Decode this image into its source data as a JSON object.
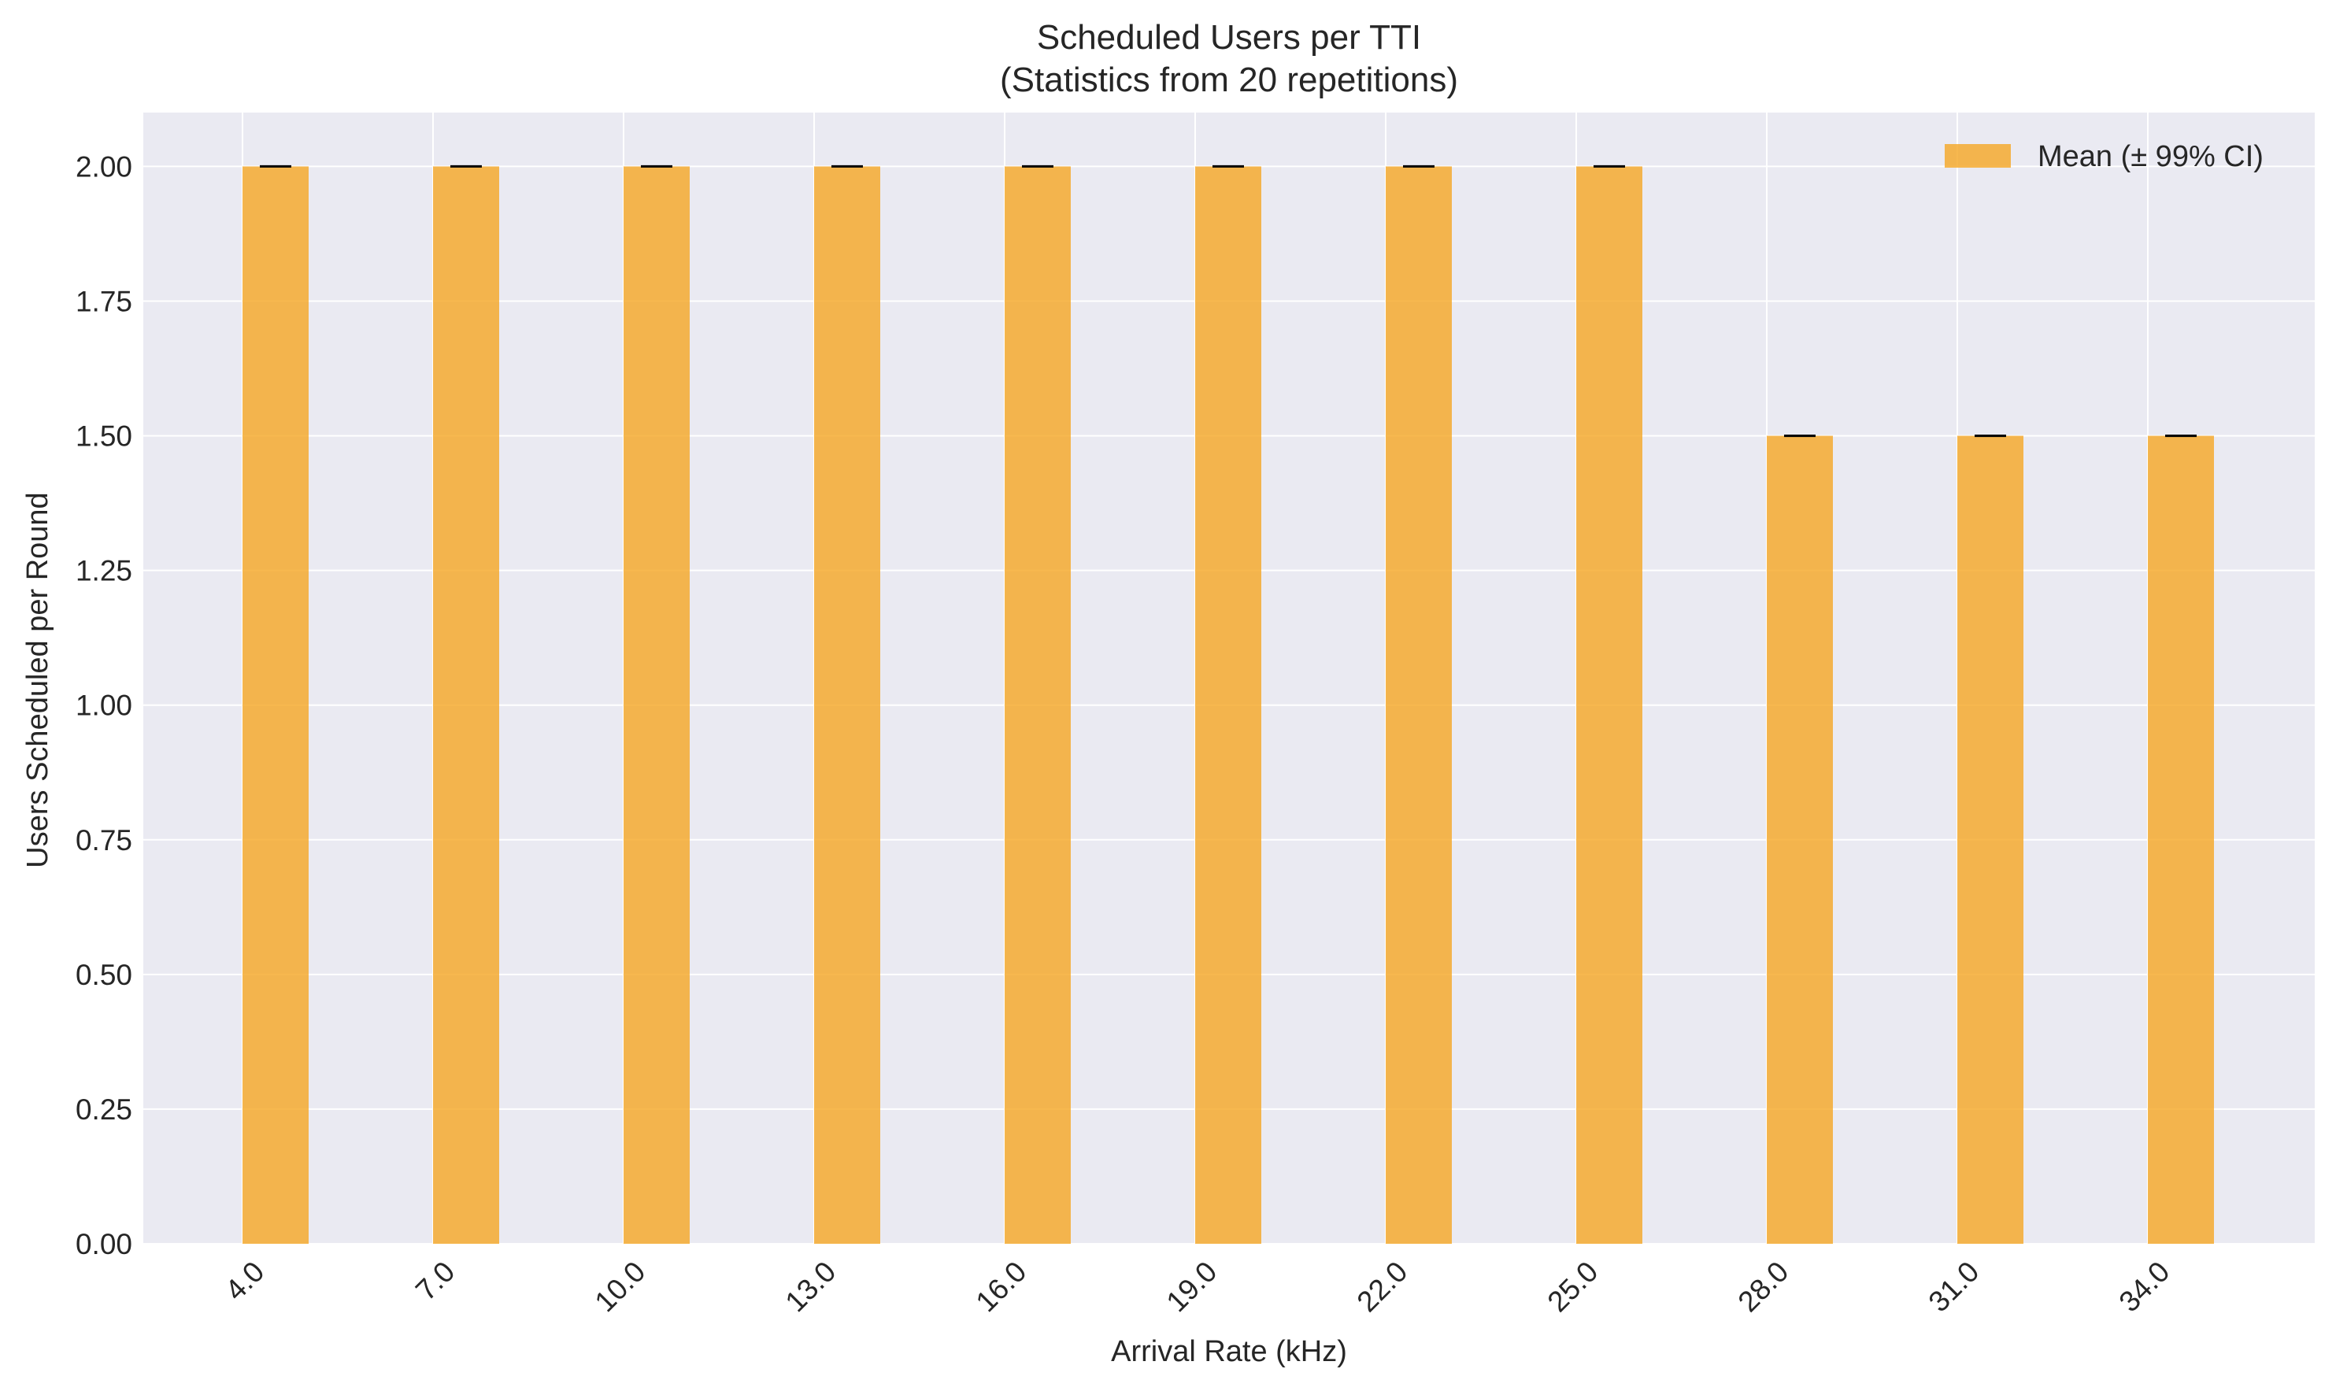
{
  "colors": {
    "plot_background": "#eaeaf2",
    "grid": "#ffffff",
    "bar": "#f5a623",
    "bar_opacity": 0.8,
    "errorbar": "#000000",
    "text": "#262626"
  },
  "chart_data": {
    "type": "bar",
    "title": "Scheduled Users per TTI",
    "subtitle": "(Statistics from 20 repetitions)",
    "xlabel": "Arrival Rate (kHz)",
    "ylabel": "Users Scheduled per Round",
    "categories": [
      "4.0",
      "7.0",
      "10.0",
      "13.0",
      "16.0",
      "19.0",
      "22.0",
      "25.0",
      "28.0",
      "31.0",
      "34.0"
    ],
    "series": [
      {
        "name": "Mean (± 99% CI)",
        "values": [
          2.0,
          2.0,
          2.0,
          2.0,
          2.0,
          2.0,
          2.0,
          2.0,
          1.5,
          1.5,
          1.5
        ],
        "ci": [
          0,
          0,
          0,
          0,
          0,
          0,
          0,
          0,
          0,
          0,
          0
        ]
      }
    ],
    "ylim": [
      0,
      2.1
    ],
    "yticks": [
      0.0,
      0.25,
      0.5,
      0.75,
      1.0,
      1.25,
      1.5,
      1.75,
      2.0
    ],
    "ytick_labels": [
      "0.00",
      "0.25",
      "0.50",
      "0.75",
      "1.00",
      "1.25",
      "1.50",
      "1.75",
      "2.00"
    ],
    "grid": true,
    "legend_position": "top-right",
    "xtick_rotation_deg": -45
  }
}
